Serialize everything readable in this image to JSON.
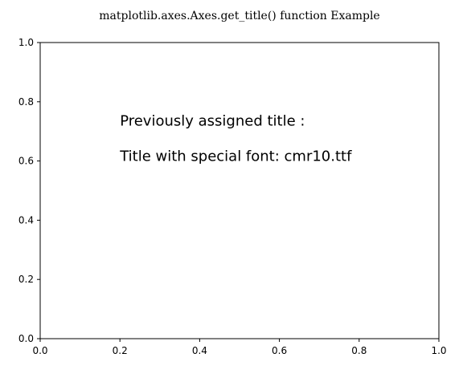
{
  "chart_data": {
    "type": "scatter",
    "title": "matplotlib.axes.Axes.get_title() function Example",
    "xlabel": "",
    "ylabel": "",
    "xlim": [
      0.0,
      1.0
    ],
    "ylim": [
      0.0,
      1.0
    ],
    "grid": false,
    "series": [],
    "x_ticks": [
      "0.0",
      "0.2",
      "0.4",
      "0.6",
      "0.8",
      "1.0"
    ],
    "y_ticks": [
      "0.0",
      "0.2",
      "0.4",
      "0.6",
      "0.8",
      "1.0"
    ],
    "annotations": [
      {
        "text": "Previously assigned title :",
        "x": 0.2,
        "y": 0.72
      },
      {
        "text": "Title with special font: cmr10.ttf",
        "x": 0.2,
        "y": 0.6
      }
    ]
  }
}
